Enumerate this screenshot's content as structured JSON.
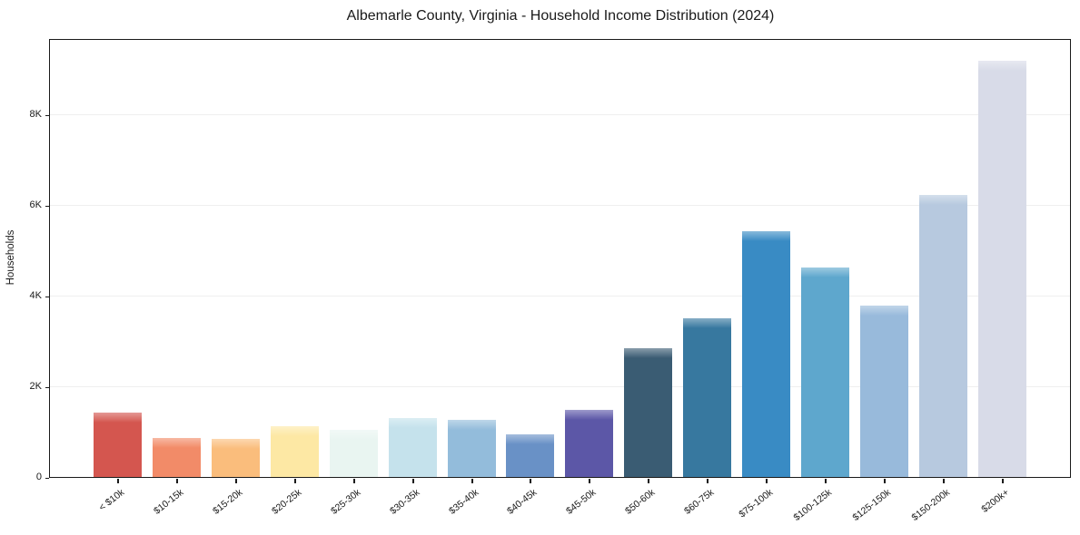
{
  "window": {
    "title": "Albemarle County, Virginia - Household Income Distribution (2024)"
  },
  "chart_data": {
    "type": "bar",
    "title": "Albemarle County, Virginia - Household Income Distribution (2024)",
    "xlabel": "",
    "ylabel": "Households",
    "categories": [
      "< $10k",
      "$10-15k",
      "$15-20k",
      "$20-25k",
      "$25-30k",
      "$30-35k",
      "$35-40k",
      "$40-45k",
      "$45-50k",
      "$50-60k",
      "$60-75k",
      "$75-100k",
      "$100-125k",
      "$125-150k",
      "$150-200k",
      "$200k+"
    ],
    "values": [
      1420,
      870,
      850,
      1130,
      1050,
      1300,
      1270,
      950,
      1490,
      2840,
      3500,
      5420,
      4630,
      3780,
      6220,
      9180
    ],
    "bar_colors": [
      "#d4564f",
      "#f28b68",
      "#fabd7c",
      "#fde8a4",
      "#e9f5f1",
      "#c5e2ec",
      "#93bcdb",
      "#6991c6",
      "#5c57a7",
      "#3a5c73",
      "#37789f",
      "#398bc4",
      "#5ea7cd",
      "#98badb",
      "#b7c9df",
      "#d8dbe8"
    ],
    "ylim": [
      0,
      9640
    ],
    "yticks": {
      "values": [
        0,
        2000,
        4000,
        6000,
        8000
      ],
      "labels": [
        "0",
        "2K",
        "4K",
        "6K",
        "8K"
      ]
    },
    "grid": true,
    "legend_position": "none",
    "colors": {
      "axis": "#1a1a1a",
      "grid": "#efefef",
      "background": "#ffffff",
      "text": "#1a1a1a"
    }
  }
}
